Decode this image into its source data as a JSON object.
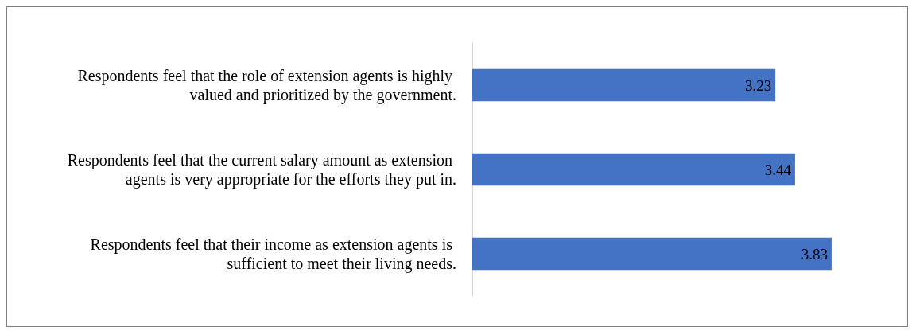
{
  "chart_data": {
    "type": "bar",
    "orientation": "horizontal",
    "categories": [
      "Respondents feel that the role of extension agents is highly valued and prioritized by the government.",
      "Respondents feel that the current salary amount as extension agents is very appropriate for the efforts they put in.",
      "Respondents feel that their income as extension agents is sufficient to meet their living needs."
    ],
    "values": [
      3.23,
      3.44,
      3.83
    ],
    "color": "#4472c4",
    "data_labels": true
  }
}
